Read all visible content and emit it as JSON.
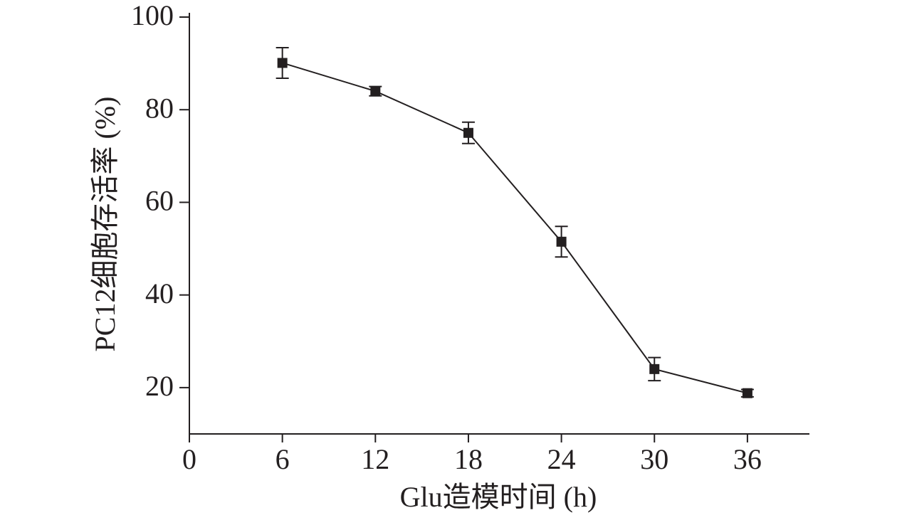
{
  "chart_data": {
    "type": "line",
    "x_label": "Glu造模时间 (h)",
    "y_label": "PC12细胞存活率 (%)",
    "x": [
      6,
      12,
      18,
      24,
      30,
      36
    ],
    "values": [
      90.1,
      84,
      75,
      51.5,
      24,
      18.8
    ],
    "errors": [
      3.3,
      1,
      2.3,
      3.3,
      2.5,
      0.8
    ],
    "color": "#231f20",
    "xlim": [
      0,
      40
    ],
    "xticks": [
      0,
      6,
      12,
      18,
      24,
      30,
      36
    ],
    "ylim": [
      10,
      100
    ],
    "yticks": [
      20,
      40,
      60,
      80,
      100
    ]
  }
}
